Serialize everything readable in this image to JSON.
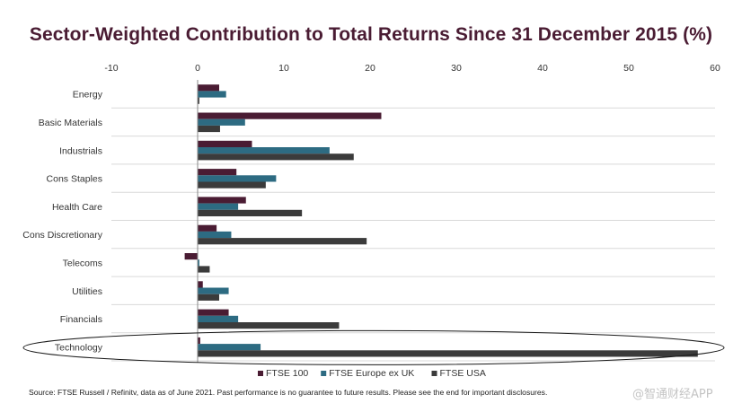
{
  "chart_data": {
    "type": "bar",
    "orientation": "horizontal",
    "title": "Sector-Weighted Contribution to Total Returns Since 31 December 2015 (%)",
    "xlabel": "",
    "ylabel": "",
    "xlim": [
      -10,
      60
    ],
    "ticks": [
      -10,
      0,
      10,
      20,
      30,
      40,
      50,
      60
    ],
    "tick_labels": [
      "-10",
      "0",
      "10",
      "20",
      "30",
      "40",
      "50",
      "60"
    ],
    "categories": [
      "Energy",
      "Basic Materials",
      "Industrials",
      "Cons Staples",
      "Health Care",
      "Cons Discretionary",
      "Telecoms",
      "Utilities",
      "Financials",
      "Technology"
    ],
    "series": [
      {
        "name": "FTSE 100",
        "color": "#4a1c33",
        "values": [
          2.5,
          21.3,
          6.3,
          4.5,
          5.6,
          2.2,
          -1.5,
          0.6,
          3.6,
          0.3
        ]
      },
      {
        "name": "FTSE Europe ex UK",
        "color": "#2d6b82",
        "values": [
          3.3,
          5.5,
          15.3,
          9.1,
          4.7,
          3.9,
          0.2,
          3.6,
          4.7,
          7.3
        ]
      },
      {
        "name": "FTSE USA",
        "color": "#3b3b3b",
        "values": [
          0.2,
          2.6,
          18.1,
          7.9,
          12.1,
          19.6,
          1.4,
          2.5,
          16.4,
          58.0
        ]
      }
    ],
    "legend_position": "bottom",
    "gridlines": true,
    "highlighted_category": "Technology"
  },
  "source_note": "Source: FTSE Russell / Refinitv, data as of June 2021. Past performance is no guarantee to future results. Please see the end for important disclosures.",
  "watermark": "@智通财经APP"
}
